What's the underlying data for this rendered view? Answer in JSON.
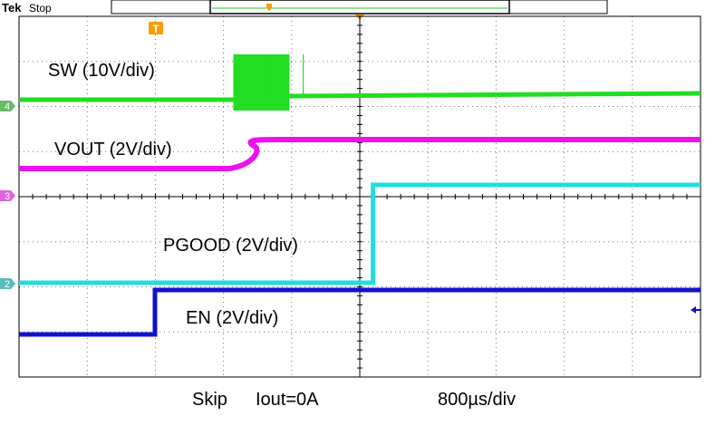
{
  "header": {
    "brand": "Tek",
    "status": "Stop"
  },
  "trigger_marker": "T",
  "channel_markers": [
    {
      "id": "4",
      "color": "#33cc33"
    },
    {
      "id": "3",
      "color": "#ff33ff"
    },
    {
      "id": "2",
      "color": "#33cccc"
    }
  ],
  "chart_data": {
    "type": "line",
    "x_unit": "µs",
    "time_per_div": 800,
    "x_divisions": 10,
    "y_divisions": 8,
    "grid": true,
    "trigger_time_us": 0,
    "series": [
      {
        "key": "sw",
        "name": "SW (10V/div)",
        "color": "#22dd22",
        "volts_per_div": 10
      },
      {
        "key": "vout",
        "name": "VOUT (2V/div)",
        "color": "#ee11ee",
        "volts_per_div": 2
      },
      {
        "key": "pgood",
        "name": "PGOOD (2V/div)",
        "color": "#22dddd",
        "volts_per_div": 2
      },
      {
        "key": "en",
        "name": "EN (2V/div)",
        "color": "#1111cc",
        "volts_per_div": 2
      }
    ],
    "events_us": {
      "en_rise": 0,
      "sw_burst_start": 920,
      "sw_burst_end": 1740,
      "vout_ramp_start": 920,
      "vout_ramp_end": 1440,
      "pgood_rise": 2560
    },
    "footer": {
      "mode": "Skip",
      "load": "Iout=0A",
      "timebase": "800µs/div"
    }
  }
}
